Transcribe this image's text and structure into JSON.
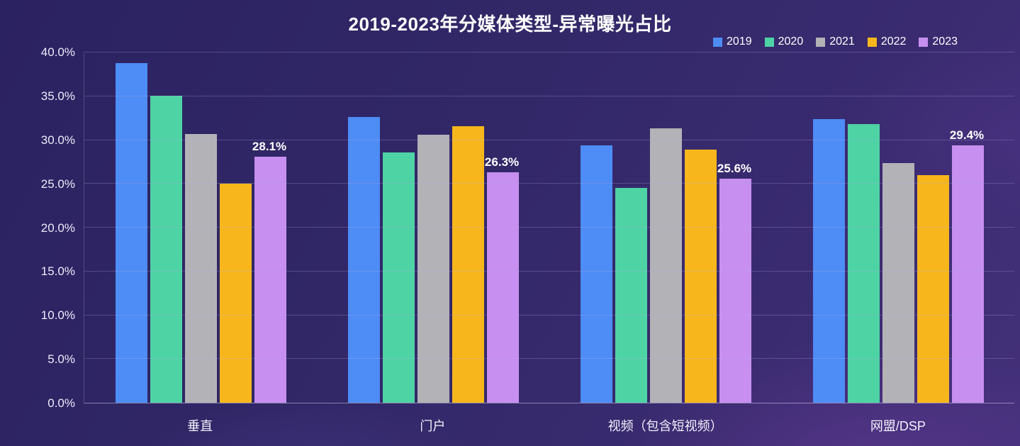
{
  "page": {
    "background": "#322868"
  },
  "chart_data": {
    "type": "bar",
    "title": "2019-2023年分媒体类型-异常曝光占比",
    "categories": [
      "垂直",
      "门户",
      "视频（包含短视频）",
      "网盟/DSP"
    ],
    "series": [
      {
        "name": "2019",
        "color": "#4E8CF6",
        "values": [
          38.8,
          32.6,
          29.4,
          32.4
        ]
      },
      {
        "name": "2020",
        "color": "#4ED3A5",
        "values": [
          35.1,
          28.6,
          24.5,
          31.8
        ]
      },
      {
        "name": "2021",
        "color": "#B3B2B7",
        "values": [
          30.7,
          30.6,
          31.3,
          27.4
        ]
      },
      {
        "name": "2022",
        "color": "#F7B71C",
        "values": [
          25.0,
          31.6,
          28.9,
          26.0
        ]
      },
      {
        "name": "2023",
        "color": "#C78FF0",
        "values": [
          28.1,
          26.3,
          25.6,
          29.4
        ],
        "labels": [
          "28.1%",
          "26.3%",
          "25.6%",
          "29.4%"
        ]
      }
    ],
    "ylim": [
      0,
      40
    ],
    "ytick_step": 5,
    "ytick_labels": [
      "0.0%",
      "5.0%",
      "10.0%",
      "15.0%",
      "20.0%",
      "25.0%",
      "30.0%",
      "35.0%",
      "40.0%"
    ],
    "grid": true,
    "legend_position": "top-right",
    "xlabel": "",
    "ylabel": ""
  }
}
